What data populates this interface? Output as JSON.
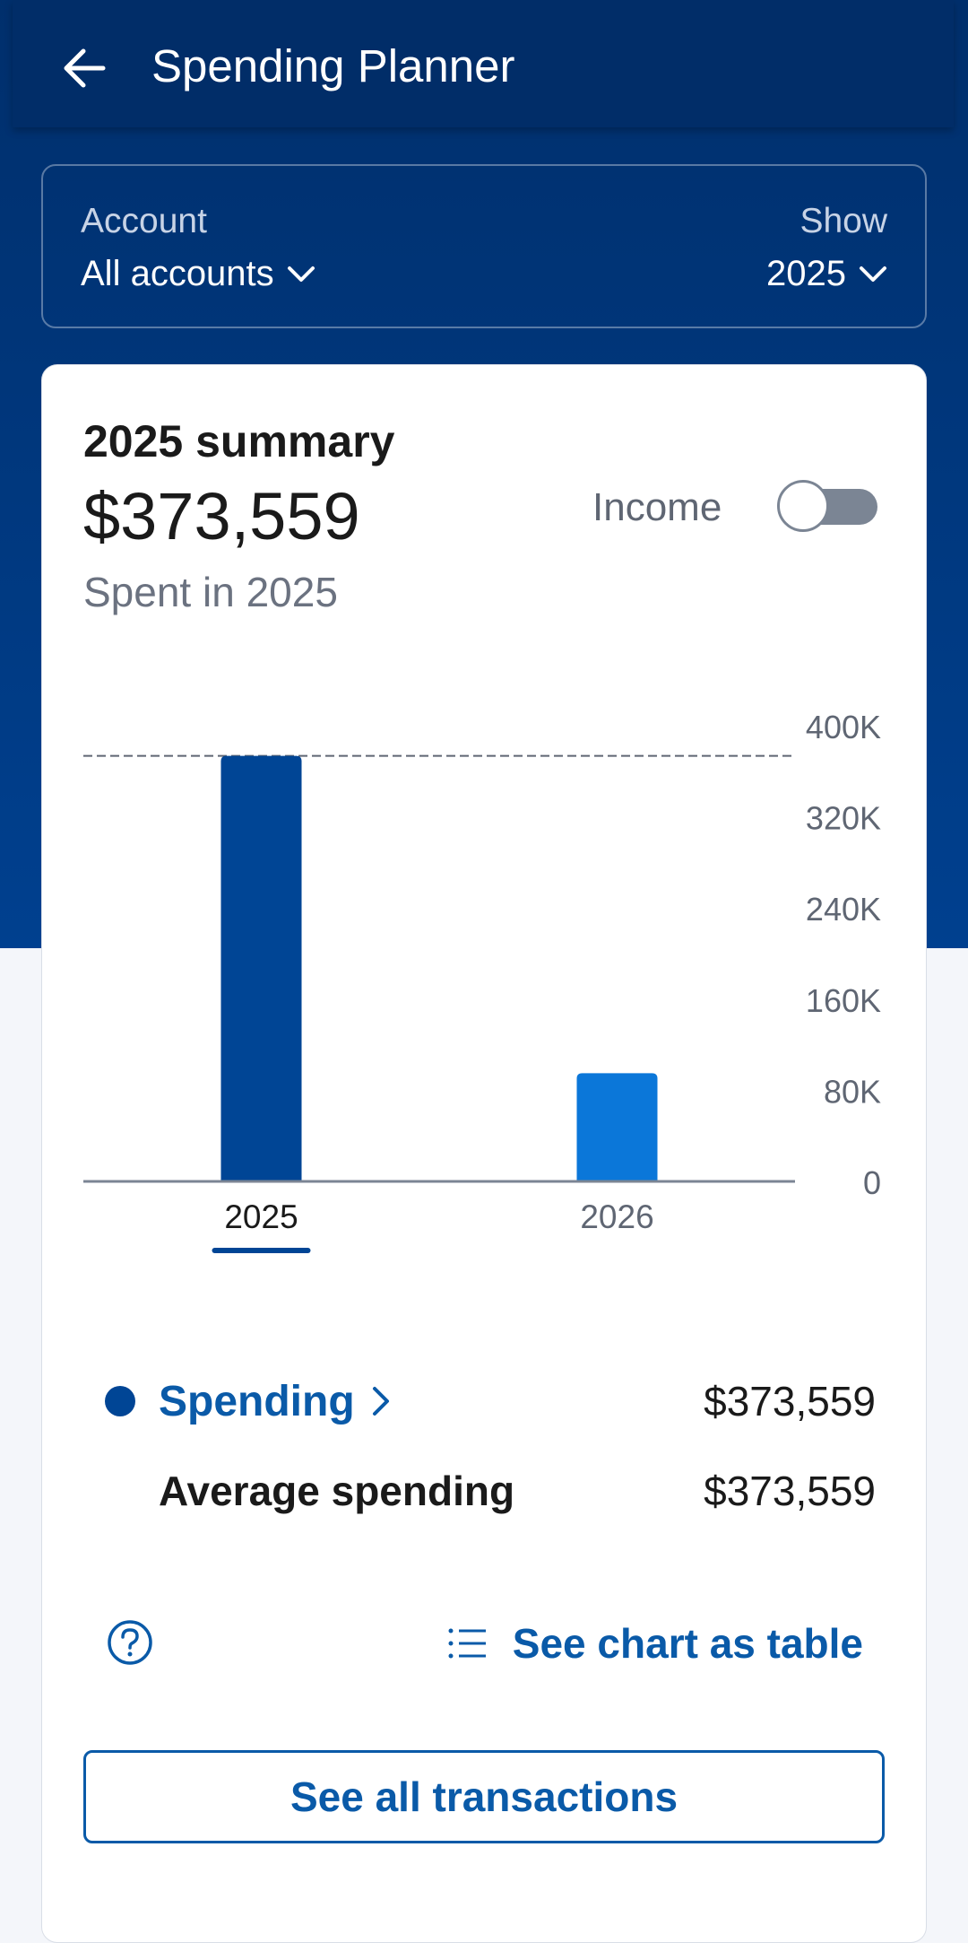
{
  "appbar": {
    "title": "Spending Planner",
    "back_icon": "arrow-left-icon"
  },
  "filters": {
    "account_label": "Account",
    "account_value": "All accounts",
    "show_label": "Show",
    "show_value": "2025"
  },
  "summary": {
    "title": "2025 summary",
    "amount": "$373,559",
    "subtitle": "Spent in 2025",
    "income_label": "Income",
    "income_toggle_on": false
  },
  "chart_data": {
    "type": "bar",
    "categories": [
      "2025",
      "2026"
    ],
    "values": [
      373559,
      95000
    ],
    "ylim": [
      0,
      400000
    ],
    "yticks": [
      "0",
      "80K",
      "160K",
      "240K",
      "320K",
      "400K"
    ],
    "selected_category": "2025",
    "average_line": 373559,
    "colors": [
      "#004595",
      "#0b77d9"
    ]
  },
  "legend": {
    "spending_label": "Spending",
    "spending_value": "$373,559",
    "average_label": "Average spending",
    "average_value": "$373,559"
  },
  "actions": {
    "help_icon": "question-circle-icon",
    "table_link": "See chart as table",
    "see_all": "See all transactions"
  },
  "colors": {
    "primary": "#0a5aa8",
    "header": "#012d68",
    "bar_selected": "#004595",
    "bar_other": "#0b77d9"
  }
}
